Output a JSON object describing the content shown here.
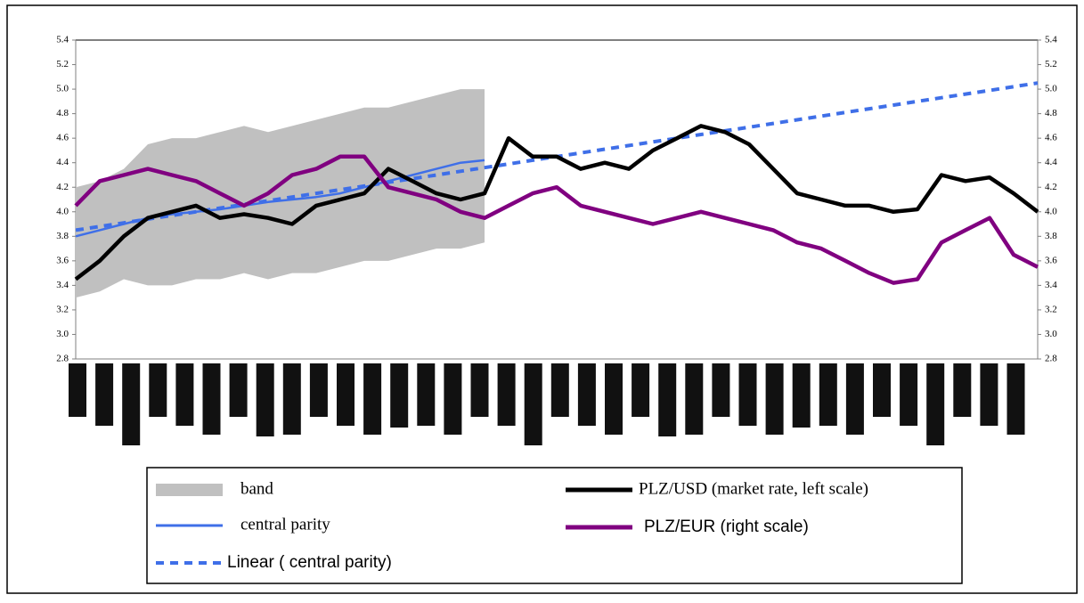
{
  "chart_data": {
    "type": "line",
    "ylim": [
      2.8,
      5.4
    ],
    "yticks": [
      2.8,
      {
        "value": 3,
        "label": "3.0"
      },
      3.2,
      3.4,
      3.6,
      3.8,
      {
        "value": 4,
        "label": "4.0"
      },
      4.2,
      4.4,
      4.6,
      4.8,
      {
        "value": 5,
        "label": "5.0"
      },
      5.2,
      5.4
    ],
    "y2lim": [
      2.8,
      5.4
    ],
    "y2ticks": [
      2.8,
      {
        "value": 3,
        "label": "3.0"
      },
      3.2,
      3.4,
      3.6,
      3.8,
      {
        "value": 4,
        "label": "4.0"
      },
      4.2,
      4.4,
      4.6,
      4.8,
      {
        "value": 5,
        "label": "5.0"
      },
      5.2,
      5.4
    ],
    "series": [
      {
        "name": "band",
        "color": "#c0c0c0",
        "values": [
          4.2,
          4.25,
          4.35,
          4.55,
          4.6,
          4.6,
          4.65,
          4.7,
          4.65,
          4.7,
          4.75,
          4.8,
          4.85,
          4.85,
          4.9,
          4.95,
          5.0,
          5.0,
          null,
          null,
          null,
          null,
          null,
          null,
          null,
          null,
          null,
          null,
          null,
          null,
          null,
          null,
          null,
          null,
          null,
          null,
          null,
          null,
          null,
          null,
          null
        ],
        "lower": [
          3.3,
          3.35,
          3.45,
          3.4,
          3.4,
          3.45,
          3.45,
          3.5,
          3.45,
          3.5,
          3.5,
          3.55,
          3.6,
          3.6,
          3.65,
          3.7,
          3.7,
          3.75,
          null,
          null,
          null,
          null,
          null,
          null,
          null,
          null,
          null,
          null,
          null,
          null,
          null,
          null,
          null,
          null,
          null,
          null,
          null,
          null,
          null,
          null,
          null
        ]
      },
      {
        "name": "central parity",
        "color": "#3f6fe8",
        "values": [
          3.8,
          3.85,
          3.9,
          3.95,
          3.98,
          4.0,
          4.02,
          4.05,
          4.08,
          4.1,
          4.12,
          4.15,
          4.2,
          4.25,
          4.3,
          4.35,
          4.4,
          4.42,
          null,
          null,
          null,
          null,
          null,
          null,
          null,
          null,
          null,
          null,
          null,
          null,
          null,
          null,
          null,
          null,
          null,
          null,
          null,
          null,
          null,
          null,
          null
        ]
      },
      {
        "name": "Linear (   central parity)",
        "color": "#3f6fe8",
        "dashed": true,
        "values": [
          3.85,
          3.88,
          3.91,
          3.94,
          3.97,
          4.0,
          4.03,
          4.06,
          4.09,
          4.12,
          4.15,
          4.18,
          4.21,
          4.24,
          4.27,
          4.3,
          4.33,
          4.36,
          4.39,
          4.42,
          4.45,
          4.48,
          4.51,
          4.54,
          4.57,
          4.6,
          4.63,
          4.66,
          4.69,
          4.72,
          4.75,
          4.78,
          4.81,
          4.84,
          4.87,
          4.9,
          4.93,
          4.96,
          4.99,
          5.02,
          5.05
        ]
      },
      {
        "name": "PLZ/USD (market rate, left scale)",
        "color": "#000000",
        "values": [
          3.45,
          3.6,
          3.8,
          3.95,
          4.0,
          4.05,
          3.95,
          3.98,
          3.95,
          3.9,
          4.05,
          4.1,
          4.15,
          4.35,
          4.25,
          4.15,
          4.1,
          4.15,
          4.6,
          4.45,
          4.45,
          4.35,
          4.4,
          4.35,
          4.5,
          4.6,
          4.7,
          4.65,
          4.55,
          4.35,
          4.15,
          4.1,
          4.05,
          4.05,
          4.0,
          4.02,
          4.3,
          4.25,
          4.28,
          4.15,
          4.0
        ]
      },
      {
        "name": "PLZ/EUR (right scale)",
        "color": "#800080",
        "axis": "y2",
        "values": [
          4.05,
          4.25,
          4.3,
          4.35,
          4.3,
          4.25,
          4.15,
          4.05,
          4.15,
          4.3,
          4.35,
          4.45,
          4.45,
          4.2,
          4.15,
          4.1,
          4.0,
          3.95,
          4.05,
          4.15,
          4.2,
          4.05,
          4.0,
          3.95,
          3.9,
          3.95,
          4.0,
          3.95,
          3.9,
          3.85,
          3.75,
          3.7,
          3.6,
          3.5,
          3.42,
          3.45,
          3.75,
          3.85,
          3.95,
          3.65,
          3.55
        ]
      }
    ]
  }
}
